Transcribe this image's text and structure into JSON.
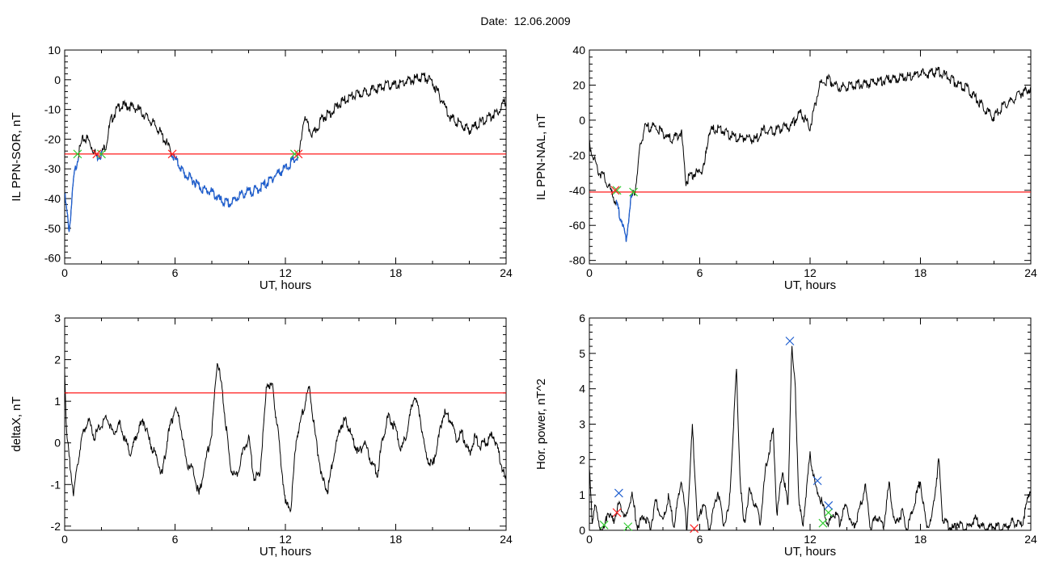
{
  "header": {
    "date_label": "Date:",
    "date_value": "12.06.2009"
  },
  "colors": {
    "trace": "#000000",
    "threshold": "#ff0000",
    "event": "#1f5fd0",
    "start_marker": "#33cc33",
    "end_marker": "#ff2222",
    "peak_marker": "#1f5fd0"
  },
  "chart_data": [
    {
      "id": "ppn-sor",
      "type": "line",
      "xlabel": "UT, hours",
      "ylabel": "IL PPN-SOR, nT",
      "xlim": [
        0,
        24
      ],
      "ylim": [
        -62,
        10
      ],
      "xticks": [
        0,
        6,
        12,
        18,
        24
      ],
      "yticks": [
        10,
        0,
        -10,
        -20,
        -30,
        -40,
        -50,
        -60
      ],
      "threshold": -25,
      "x": [
        0,
        0.25,
        0.5,
        0.75,
        1,
        1.25,
        1.5,
        1.75,
        2,
        2.25,
        2.5,
        2.75,
        3,
        3.5,
        4,
        4.5,
        5,
        5.5,
        5.75,
        6,
        6.25,
        6.5,
        7,
        7.5,
        8,
        8.5,
        9,
        9.5,
        10,
        10.5,
        11,
        11.5,
        12,
        12.5,
        12.75,
        13,
        13.5,
        14,
        14.5,
        15,
        15.5,
        16,
        16.5,
        17,
        17.5,
        18,
        18.5,
        19,
        19.5,
        20,
        20.5,
        21,
        21.5,
        22,
        22.5,
        23,
        23.5,
        24
      ],
      "values": [
        -38,
        -50,
        -32,
        -24,
        -19,
        -19,
        -22,
        -25,
        -24,
        -21,
        -13,
        -10,
        -8,
        -8,
        -9,
        -12,
        -15,
        -20,
        -23,
        -26,
        -28,
        -31,
        -33,
        -36,
        -37,
        -40,
        -41,
        -38,
        -37,
        -36,
        -34,
        -31,
        -29,
        -26,
        -25,
        -12,
        -18,
        -12,
        -10,
        -7,
        -5,
        -4,
        -3,
        -2,
        -1,
        -1,
        0,
        1,
        2,
        0,
        -6,
        -12,
        -14,
        -16,
        -14,
        -12,
        -10,
        -6
      ],
      "event_segments": [
        [
          0,
          0.75
        ],
        [
          1.75,
          2.0
        ],
        [
          5.8,
          12.7
        ]
      ],
      "start_markers": [
        [
          0.7,
          -25
        ],
        [
          2.0,
          -25
        ],
        [
          12.5,
          -25
        ]
      ],
      "end_markers": [
        [
          1.75,
          -25
        ],
        [
          5.85,
          -25
        ],
        [
          12.7,
          -25
        ]
      ]
    },
    {
      "id": "ppn-nal",
      "type": "line",
      "xlabel": "UT, hours",
      "ylabel": "IL PPN-NAL, nT",
      "xlim": [
        0,
        24
      ],
      "ylim": [
        -82,
        40
      ],
      "xticks": [
        0,
        6,
        12,
        18,
        24
      ],
      "yticks": [
        40,
        20,
        0,
        -20,
        -40,
        -60,
        -80
      ],
      "threshold": -41,
      "x": [
        0,
        0.25,
        0.5,
        0.75,
        1,
        1.25,
        1.5,
        1.75,
        2,
        2.1,
        2.25,
        2.5,
        2.75,
        3,
        3.5,
        4,
        4.5,
        5,
        5.25,
        5.5,
        6,
        6.25,
        6.5,
        7,
        7.5,
        8,
        8.5,
        9,
        9.5,
        10,
        10.5,
        11,
        11.25,
        11.5,
        12,
        12.5,
        13,
        13.5,
        14,
        14.5,
        15,
        15.5,
        16,
        16.5,
        17,
        17.5,
        18,
        18.5,
        19,
        19.5,
        20,
        20.5,
        21,
        21.5,
        22,
        22.5,
        23,
        23.5,
        24
      ],
      "values": [
        -12,
        -20,
        -28,
        -30,
        -36,
        -40,
        -48,
        -55,
        -68,
        -58,
        -44,
        -38,
        -15,
        -3,
        -2,
        -6,
        -10,
        -5,
        -34,
        -30,
        -28,
        -25,
        -5,
        -3,
        -6,
        -9,
        -8,
        -10,
        -4,
        -5,
        -3,
        -2,
        3,
        6,
        -3,
        21,
        25,
        20,
        21,
        22,
        22,
        23,
        24,
        25,
        26,
        27,
        28,
        28,
        29,
        26,
        22,
        20,
        14,
        8,
        3,
        10,
        13,
        17,
        20
      ],
      "event_segments": [
        [
          1.45,
          2.35
        ]
      ],
      "start_markers": [
        [
          1.5,
          -40
        ],
        [
          2.4,
          -41
        ]
      ],
      "end_markers": [
        [
          1.4,
          -40
        ]
      ]
    },
    {
      "id": "deltax",
      "type": "line",
      "xlabel": "UT, hours",
      "ylabel": "deltaX, nT",
      "xlim": [
        0,
        24
      ],
      "ylim": [
        -2.1,
        3
      ],
      "xticks": [
        0,
        6,
        12,
        18,
        24
      ],
      "yticks": [
        3,
        2,
        1,
        0,
        -1,
        -2
      ],
      "threshold": 1.2,
      "x": [
        0,
        0.1,
        0.3,
        0.5,
        0.7,
        1,
        1.3,
        1.6,
        2,
        2.3,
        2.6,
        3,
        3.3,
        3.6,
        4,
        4.3,
        4.6,
        5,
        5.3,
        5.6,
        6,
        6.3,
        6.6,
        7,
        7.3,
        7.6,
        8,
        8.3,
        8.6,
        9,
        9.3,
        9.6,
        10,
        10.3,
        10.6,
        11,
        11.3,
        11.6,
        12,
        12.3,
        12.6,
        13,
        13.3,
        13.6,
        14,
        14.3,
        14.6,
        15,
        15.3,
        15.6,
        16,
        16.3,
        16.6,
        17,
        17.3,
        17.6,
        18,
        18.3,
        18.6,
        19,
        19.3,
        19.6,
        20,
        20.3,
        20.6,
        21,
        21.3,
        21.6,
        22,
        22.3,
        22.6,
        23,
        23.3,
        23.6,
        24
      ],
      "values": [
        1.8,
        0.3,
        -0.5,
        -1.2,
        -0.4,
        0.3,
        0.6,
        0.2,
        0.5,
        0.7,
        0.3,
        0.5,
        0.1,
        -0.2,
        0.4,
        0.6,
        0.1,
        -0.3,
        -0.7,
        0.2,
        0.9,
        0.5,
        -0.4,
        -0.6,
        -1.2,
        -0.5,
        0.3,
        2.1,
        1.2,
        -0.5,
        -0.8,
        -0.3,
        0.2,
        -0.8,
        -0.7,
        1.5,
        1.4,
        0.3,
        -1.4,
        -1.5,
        0.2,
        0.9,
        1.4,
        0.3,
        -0.8,
        -1.1,
        -0.3,
        0.5,
        0.6,
        0.2,
        -0.2,
        0.1,
        -0.3,
        -0.7,
        0.2,
        0.7,
        0.4,
        -0.1,
        0.3,
        1.2,
        0.8,
        -0.2,
        -0.5,
        0.1,
        0.8,
        0.6,
        0.1,
        0.3,
        -0.2,
        0.2,
        0.0,
        0.1,
        0.3,
        -0.2,
        -0.9
      ],
      "event_segments": [],
      "start_markers": [],
      "end_markers": []
    },
    {
      "id": "hor-power",
      "type": "line",
      "xlabel": "UT, hours",
      "ylabel": "Hor. power, nT^2",
      "xlim": [
        0,
        24
      ],
      "ylim": [
        0,
        6
      ],
      "xticks": [
        0,
        6,
        12,
        18,
        24
      ],
      "yticks": [
        6,
        5,
        4,
        3,
        2,
        1,
        0
      ],
      "threshold": null,
      "x": [
        0,
        0.15,
        0.3,
        0.5,
        0.8,
        1,
        1.3,
        1.6,
        2,
        2.3,
        2.6,
        3,
        3.3,
        3.6,
        4,
        4.3,
        4.6,
        5,
        5.3,
        5.6,
        5.9,
        6.2,
        6.5,
        7,
        7.3,
        7.6,
        8,
        8.2,
        8.4,
        8.7,
        9,
        9.3,
        9.6,
        10,
        10.2,
        10.5,
        10.8,
        11,
        11.2,
        11.4,
        11.6,
        11.8,
        12,
        12.3,
        12.6,
        13,
        13.3,
        13.6,
        14,
        14.3,
        14.6,
        15,
        15.3,
        15.6,
        16,
        16.3,
        16.6,
        17,
        17.3,
        17.6,
        18,
        18.3,
        18.6,
        19,
        19.2,
        19.5,
        19.8,
        20,
        20.5,
        21,
        21.5,
        22,
        22.5,
        23,
        23.5,
        24
      ],
      "values": [
        1.8,
        0.3,
        0.9,
        0.2,
        0.1,
        0.6,
        0.3,
        0.8,
        0.4,
        1.1,
        0.2,
        0.5,
        0.1,
        0.9,
        0.3,
        1.0,
        0.2,
        1.5,
        0.1,
        3.0,
        0.2,
        0.9,
        0.1,
        1.2,
        0.2,
        0.7,
        4.6,
        1.5,
        0.2,
        1.2,
        0.8,
        0.3,
        1.9,
        2.9,
        0.5,
        1.8,
        0.7,
        5.3,
        4.0,
        0.8,
        0.2,
        1.2,
        2.2,
        1.3,
        0.9,
        0.2,
        0.6,
        0.3,
        0.8,
        0.1,
        0.5,
        1.3,
        0.1,
        0.5,
        0.2,
        1.4,
        0.2,
        0.6,
        0.1,
        0.7,
        1.5,
        0.2,
        0.3,
        2.1,
        0.4,
        0.2,
        0.1,
        0.3,
        0.1,
        0.4,
        0.1,
        0.2,
        0.1,
        0.3,
        0.2,
        1.3
      ],
      "event_segments": [],
      "start_markers": [
        [
          0.8,
          0.15
        ],
        [
          2.1,
          0.1
        ],
        [
          12.7,
          0.2
        ],
        [
          13.0,
          0.5
        ]
      ],
      "end_markers": [
        [
          1.5,
          0.5
        ],
        [
          5.7,
          0.05
        ]
      ],
      "peak_markers": [
        [
          1.6,
          1.05
        ],
        [
          10.9,
          5.35
        ],
        [
          12.4,
          1.4
        ],
        [
          13.0,
          0.7
        ]
      ]
    }
  ]
}
